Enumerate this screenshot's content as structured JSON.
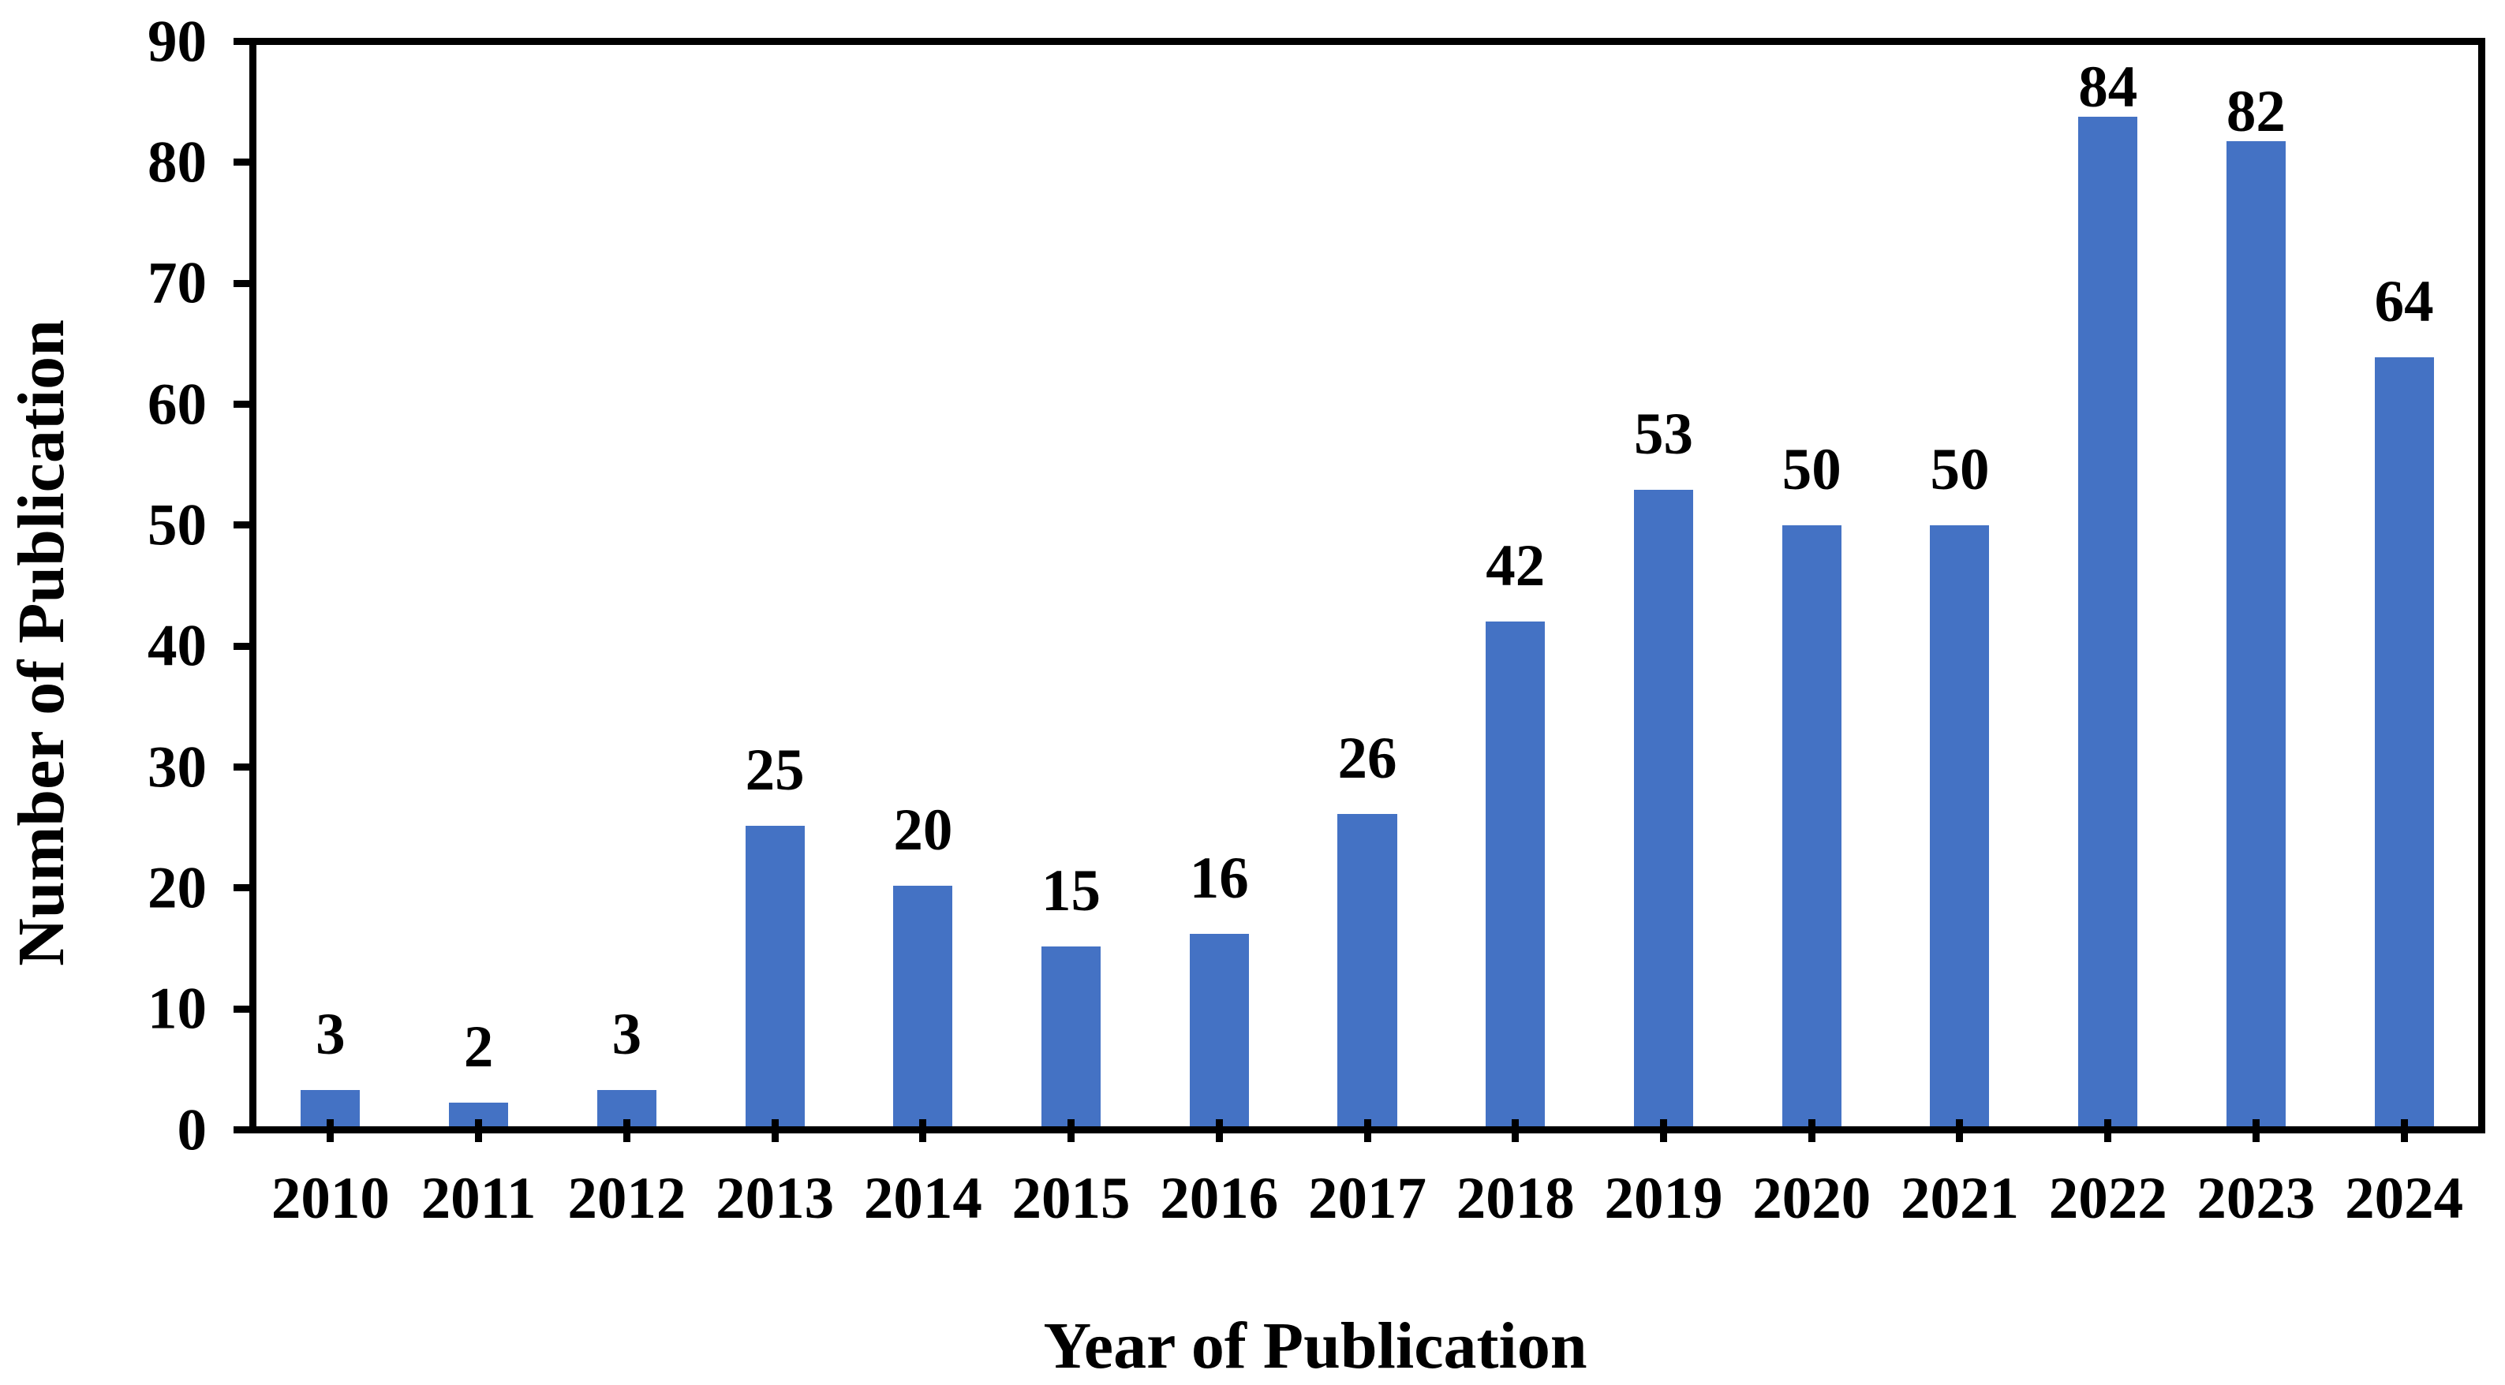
{
  "chart_data": {
    "type": "bar",
    "title": "",
    "xlabel": "Year of Publication",
    "ylabel": "Number of Publication",
    "categories": [
      "2010",
      "2011",
      "2012",
      "2013",
      "2014",
      "2015",
      "2016",
      "2017",
      "2018",
      "2019",
      "2020",
      "2021",
      "2022",
      "2023",
      "2024"
    ],
    "values": [
      3,
      2,
      3,
      25,
      20,
      15,
      16,
      26,
      42,
      53,
      50,
      50,
      84,
      82,
      64
    ],
    "data_labels": [
      "3",
      "2",
      "3",
      "25",
      "20",
      "15",
      "16",
      "26",
      "42",
      "53",
      "50",
      "50",
      "84",
      "82",
      "64"
    ],
    "y_ticks": [
      0,
      10,
      20,
      30,
      40,
      50,
      60,
      70,
      80,
      90
    ],
    "ylim": [
      0,
      90
    ],
    "grid": false,
    "legend": "none",
    "bar_color": "#4472C4",
    "axis_color": "#000000",
    "background_color": "#FFFFFF",
    "label_color": "#000000"
  }
}
